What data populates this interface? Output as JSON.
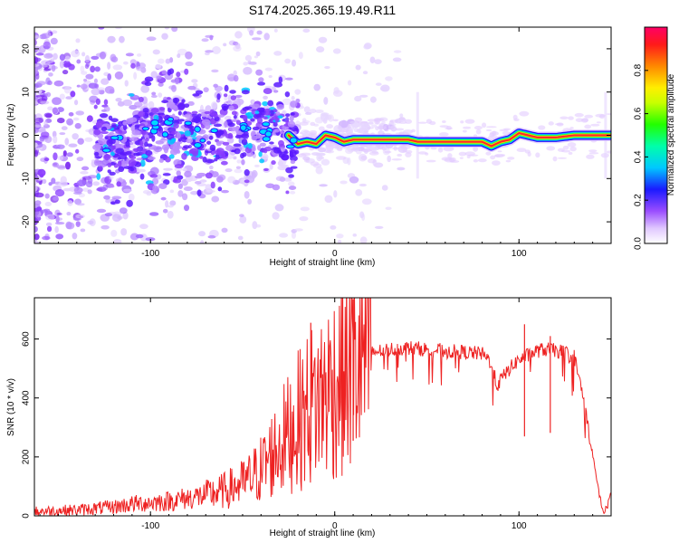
{
  "title": "S174.2025.365.19.49.R11",
  "colors": {
    "line": "#ee2222",
    "axis": "#000000",
    "background": "#ffffff"
  },
  "chart_data": [
    {
      "type": "heatmap",
      "xlabel": "Height of straight line (km)",
      "ylabel": "Frequency (Hz)",
      "xlim": [
        -163,
        150
      ],
      "ylim": [
        -25,
        25
      ],
      "xticks": [
        -100,
        0,
        100
      ],
      "yticks": [
        -20,
        -10,
        0,
        10,
        20
      ],
      "xtick_labels": [
        "-100",
        "0",
        "100"
      ],
      "ytick_labels": [
        "-20",
        "-10",
        "0",
        "10",
        "20"
      ],
      "ridge": {
        "x": [
          -125,
          -110,
          -100,
          -90,
          -80,
          -70,
          -60,
          -50,
          -40,
          -30,
          -25,
          -20,
          -15,
          -10,
          -5,
          0,
          5,
          10,
          20,
          30,
          40,
          45,
          50,
          60,
          70,
          80,
          85,
          90,
          95,
          100,
          110,
          120,
          130,
          140,
          148
        ],
        "freq": [
          -2.5,
          -2,
          0.5,
          3,
          1,
          -0.5,
          1,
          0.5,
          1.5,
          1.5,
          0,
          -2,
          -1.5,
          -2,
          0,
          -0.5,
          -1.5,
          -1,
          -1,
          -1,
          -1,
          -1.5,
          -1.5,
          -1.5,
          -1.5,
          -1.5,
          -2.5,
          -1.5,
          -1,
          0.5,
          -0.5,
          -0.5,
          0,
          0,
          0
        ]
      },
      "colorbar": {
        "label": "Normalized spectral amplitude",
        "range": [
          0,
          1
        ],
        "ticks": [
          0.0,
          0.2,
          0.4,
          0.6,
          0.8
        ],
        "tick_labels": [
          "0.0",
          "0.2",
          "0.4",
          "0.6",
          "0.8"
        ]
      }
    },
    {
      "type": "line",
      "xlabel": "Height of straight line (km)",
      "ylabel": "SNR (10 * v/v)",
      "xlim": [
        -163,
        150
      ],
      "ylim": [
        0,
        740
      ],
      "xticks": [
        -100,
        0,
        100
      ],
      "yticks": [
        0,
        200,
        400,
        600
      ],
      "xtick_labels": [
        "-100",
        "0",
        "100"
      ],
      "ytick_labels": [
        "0",
        "200",
        "400",
        "600"
      ],
      "series": [
        {
          "name": "SNR",
          "x": [
            -163,
            -140,
            -130,
            -120,
            -110,
            -100,
            -90,
            -80,
            -70,
            -60,
            -50,
            -45,
            -40,
            -35,
            -30,
            -25,
            -20,
            -15,
            -10,
            -5,
            0,
            5,
            10,
            15,
            20,
            25,
            30,
            40,
            50,
            60,
            70,
            80,
            85,
            88,
            90,
            95,
            100,
            105,
            110,
            115,
            120,
            125,
            130,
            135,
            140,
            144,
            146,
            148,
            150
          ],
          "y": [
            15,
            20,
            25,
            30,
            40,
            45,
            50,
            60,
            70,
            85,
            110,
            130,
            160,
            200,
            240,
            280,
            320,
            360,
            390,
            420,
            450,
            480,
            510,
            530,
            555,
            560,
            565,
            570,
            565,
            560,
            555,
            550,
            520,
            440,
            460,
            500,
            530,
            545,
            560,
            565,
            560,
            555,
            540,
            400,
            200,
            60,
            10,
            30,
            90
          ]
        }
      ],
      "spikes": [
        {
          "x": -13,
          "y": 655
        },
        {
          "x": 10,
          "y": 735
        },
        {
          "x": 103,
          "y": 650
        },
        {
          "x": 117,
          "y": 610
        }
      ]
    }
  ]
}
